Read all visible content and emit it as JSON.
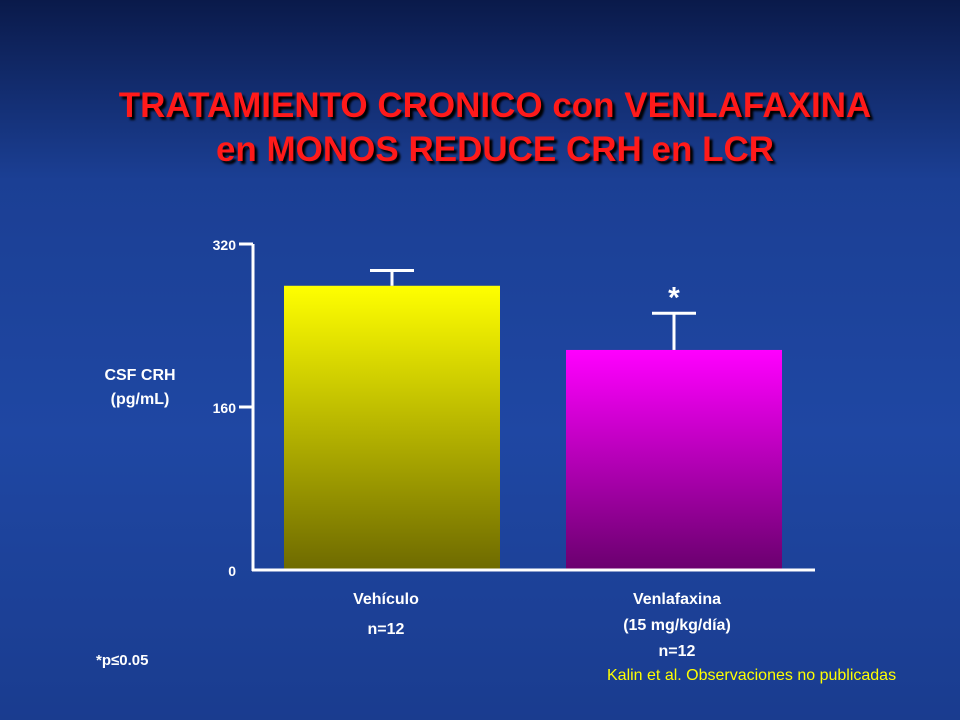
{
  "slide": {
    "title_line1": "TRATAMIENTO CRONICO con VENLAFAXINA",
    "title_line2": "en MONOS REDUCE CRH en LCR",
    "significance_note": "*p≤0.05",
    "citation": "Kalin et al. Observaciones no publicadas"
  },
  "chart_data": {
    "type": "bar",
    "categories": [
      {
        "name": "Vehículo",
        "dose": "",
        "n": "n=12"
      },
      {
        "name": "Venlafaxina",
        "dose": "(15 mg/kg/día)",
        "n": "n=12"
      }
    ],
    "values": [
      279,
      216
    ],
    "error_plus": [
      15,
      36
    ],
    "significance": [
      "",
      "*"
    ],
    "ylabel_line1": "CSF CRH",
    "ylabel_line2": "(pg/mL)",
    "yticks": [
      "0",
      "160",
      "320"
    ],
    "ylim": [
      0,
      320
    ],
    "grid": false,
    "colors": {
      "bar1_top": "#ffff00",
      "bar1_bottom": "#6e6a00",
      "bar2_top": "#ff00ff",
      "bar2_bottom": "#6a006e",
      "axis": "#ffffff"
    }
  }
}
